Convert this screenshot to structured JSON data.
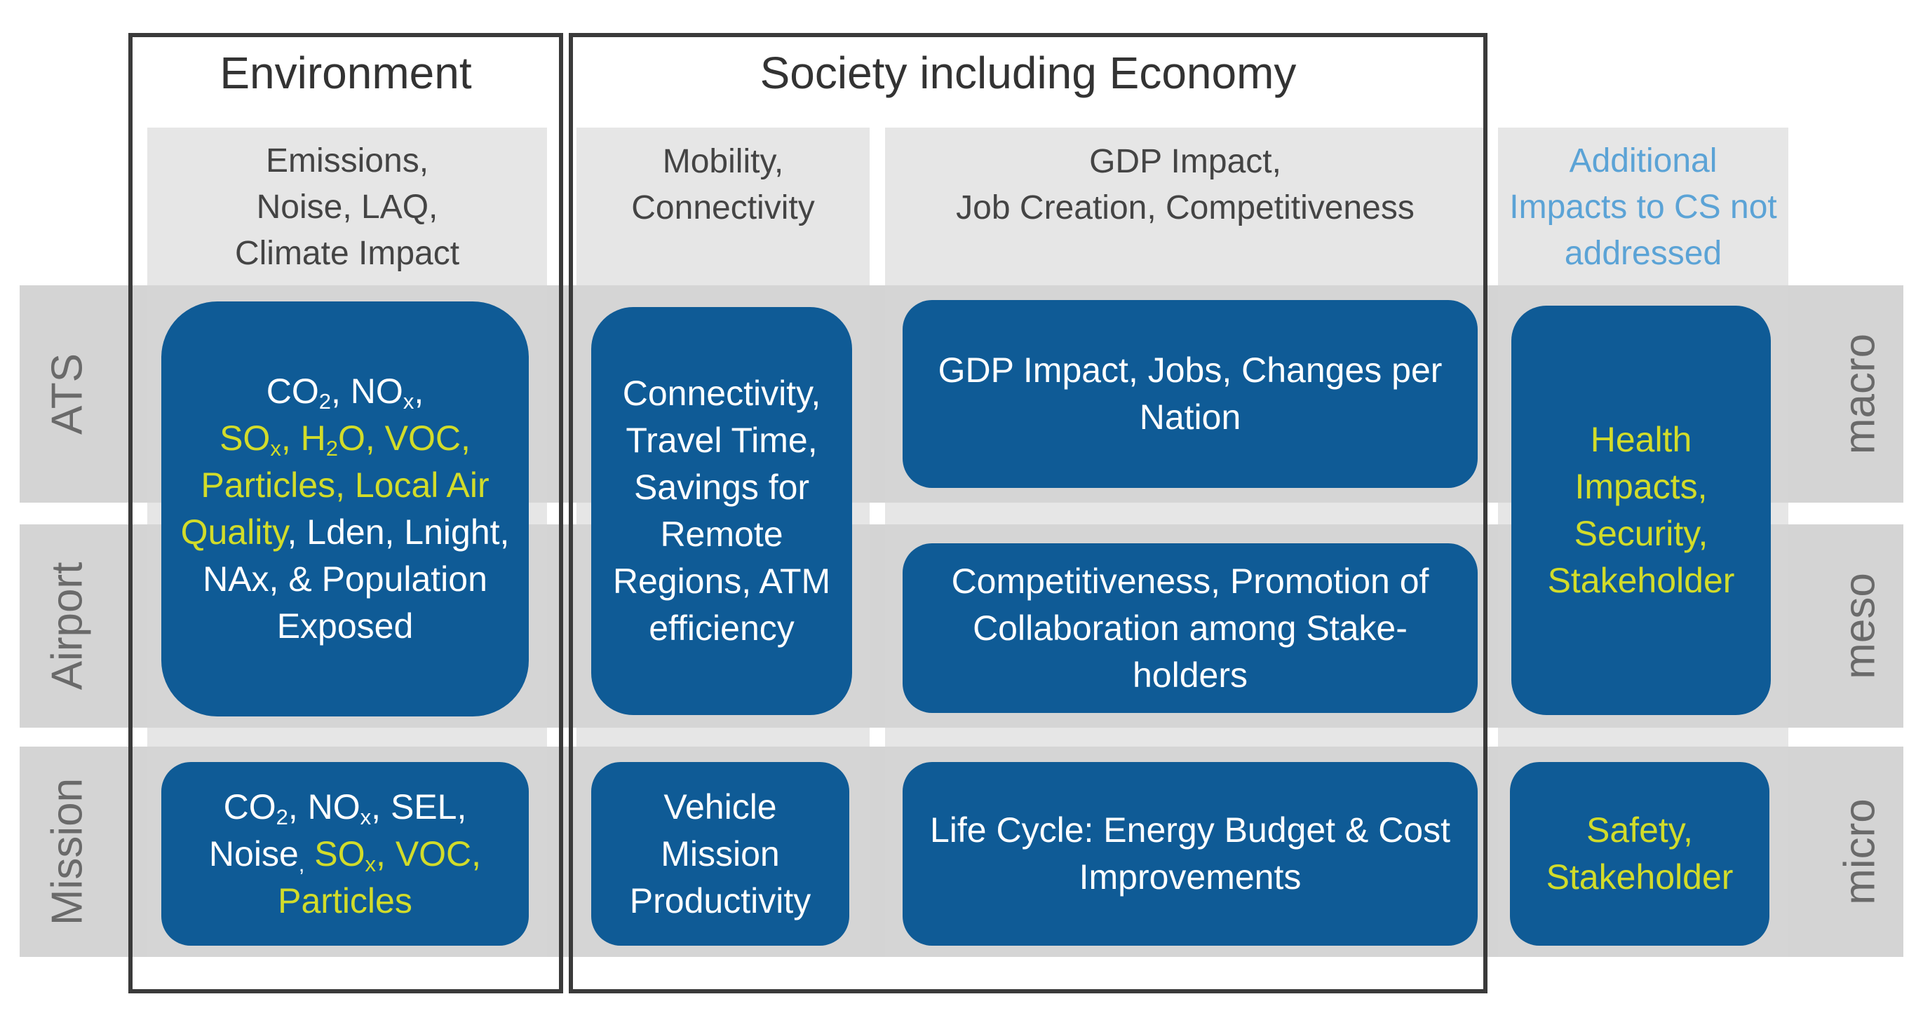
{
  "titles": {
    "environment": "Environment",
    "society": "Society including Economy"
  },
  "headers": {
    "emissions": [
      "Emissions,",
      "Noise, LAQ,",
      "Climate Impact"
    ],
    "mobility": [
      "Mobility,",
      "Connectivity"
    ],
    "gdp": [
      "GDP Impact,",
      "Job Creation, Competitiveness"
    ],
    "additional": [
      "Additional",
      "Impacts to CS not",
      "addressed"
    ]
  },
  "row_labels_left": {
    "ats": "ATS",
    "airport": "Airport",
    "mission": "Mission"
  },
  "row_labels_right": {
    "macro": "macro",
    "meso": "meso",
    "micro": "micro"
  },
  "boxes": {
    "env_ats": {
      "co2": "CO",
      "co2_sub": "2",
      "comma1": ", NO",
      "nox_sub": "x",
      "comma2": ",",
      "sox": "SO",
      "sox_sub": "x",
      "h2o_a": ", H",
      "h2o_sub": "2",
      "h2o_b": "O, VOC,",
      "particles": "Particles, Local Air",
      "quality": "Quality",
      "lden": ", Lden, Lnight,",
      "nax": "NAx, & Population",
      "exposed": "Exposed"
    },
    "env_mission": {
      "co2": "CO",
      "co2_sub": "2",
      "nox": ", NO",
      "nox_sub": "x",
      "sel": ", SEL,",
      "noise": "Noise",
      "comma": ",",
      "sox": " SO",
      "sox_sub": "x",
      "voc": ", VOC,",
      "particles": "Particles"
    },
    "mobility_macro": [
      "Connectivity,",
      "Travel Time,",
      "Savings for",
      "Remote",
      "Regions, ATM",
      "efficiency"
    ],
    "mobility_micro": [
      "Vehicle",
      "Mission",
      "Productivity"
    ],
    "gdp_macro": [
      "GDP Impact, Jobs, Changes per",
      "Nation"
    ],
    "gdp_meso": [
      "Competitiveness, Promotion of",
      "Collaboration among Stake-",
      "holders"
    ],
    "gdp_micro": [
      "Life Cycle: Energy Budget & Cost",
      "Improvements"
    ],
    "add_macro": [
      "Health",
      "Impacts,",
      "Security,",
      "Stakeholder"
    ],
    "add_micro": [
      "Safety,",
      "Stakeholder"
    ]
  },
  "colors": {
    "box_blue": "#0f5b96",
    "highlight_yellow": "#d2dc2a",
    "additional_blue": "#5ba3d6",
    "panel_gray": "#d6d6d6",
    "frame": "#3a3a3a"
  }
}
